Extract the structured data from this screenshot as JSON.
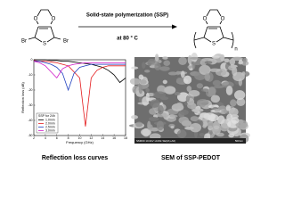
{
  "reaction": {
    "method": "Solid-state polymerization (SSP)",
    "condition": "at 80 ° C",
    "monomer_atoms": {
      "o_left": "O",
      "o_right": "O",
      "s": "S",
      "br_left": "Br",
      "br_right": "Br"
    },
    "polymer_atoms": {
      "o_left": "O",
      "o_right": "O",
      "s": "S",
      "repeat": "n"
    }
  },
  "chart_data": {
    "type": "line",
    "x_label": "Frequency (GHz)",
    "y_label": "Reflection loss (dB)",
    "legend_title": "SSP for 24h",
    "x": [
      2,
      3,
      4,
      5,
      6,
      7,
      8,
      9,
      10,
      11,
      12,
      13,
      14,
      15,
      16,
      17,
      18
    ],
    "series": [
      {
        "name": "1.0mm",
        "color": "#000000",
        "values": [
          0,
          0,
          0,
          -0.5,
          -0.5,
          -1,
          -1,
          -1.5,
          -2,
          -2.5,
          -3,
          -4,
          -5,
          -7,
          -10,
          -15,
          -12
        ]
      },
      {
        "name": "2.0mm",
        "color": "#e41a1c",
        "values": [
          -0.5,
          -1,
          -1,
          -1.5,
          -2,
          -3,
          -4,
          -8,
          -12,
          -44,
          -12,
          -7,
          -5,
          -4,
          -4,
          -4,
          -4
        ]
      },
      {
        "name": "2.5mm",
        "color": "#1f3fbf",
        "values": [
          -1,
          -1,
          -2,
          -3,
          -5,
          -9,
          -20,
          -9,
          -5,
          -4,
          -3,
          -3,
          -3,
          -3,
          -3,
          -3,
          -3
        ]
      },
      {
        "name": "3.0mm",
        "color": "#d01cc8",
        "values": [
          -1,
          -2,
          -4,
          -8,
          -12,
          -6,
          -4,
          -3,
          -2.5,
          -2,
          -2,
          -2,
          -2,
          -2,
          -2,
          -2,
          -2
        ]
      }
    ],
    "xlim": [
      2,
      18
    ],
    "xticks": [
      2,
      4,
      6,
      8,
      10,
      12,
      14,
      16,
      18
    ],
    "ylim": [
      -50,
      0
    ],
    "yticks": [
      0,
      -10,
      -20,
      -30,
      -40,
      -50
    ]
  },
  "sem": {
    "info": "SM600 10.0kV x100k SE(M,LA0)",
    "scale_bar": "500nm"
  },
  "captions": [
    "Reflection loss curves",
    "SEM of SSP-PEDOT"
  ]
}
